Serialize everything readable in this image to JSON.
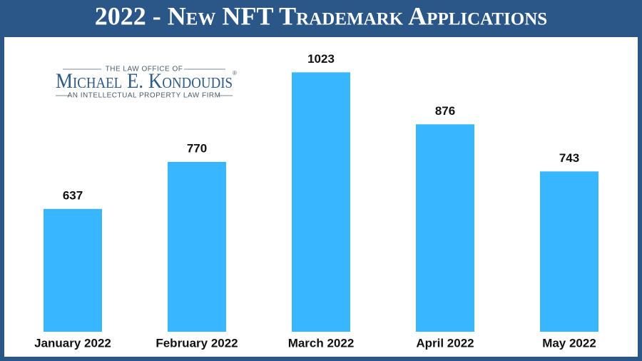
{
  "chart_data": {
    "type": "bar",
    "title": "2022 - New NFT Trademark Applications",
    "categories": [
      "January 2022",
      "February 2022",
      "March 2022",
      "April 2022",
      "May 2022"
    ],
    "values": [
      637,
      770,
      1023,
      876,
      743
    ],
    "color": "#38b6ff",
    "ylim": [
      290,
      1050
    ],
    "grid": false
  },
  "logo": {
    "top_line": "The Law Office of",
    "name": "Michael E. Kondoudis",
    "mark": "®",
    "bottom_line": "An Intellectual Property Law Firm"
  }
}
